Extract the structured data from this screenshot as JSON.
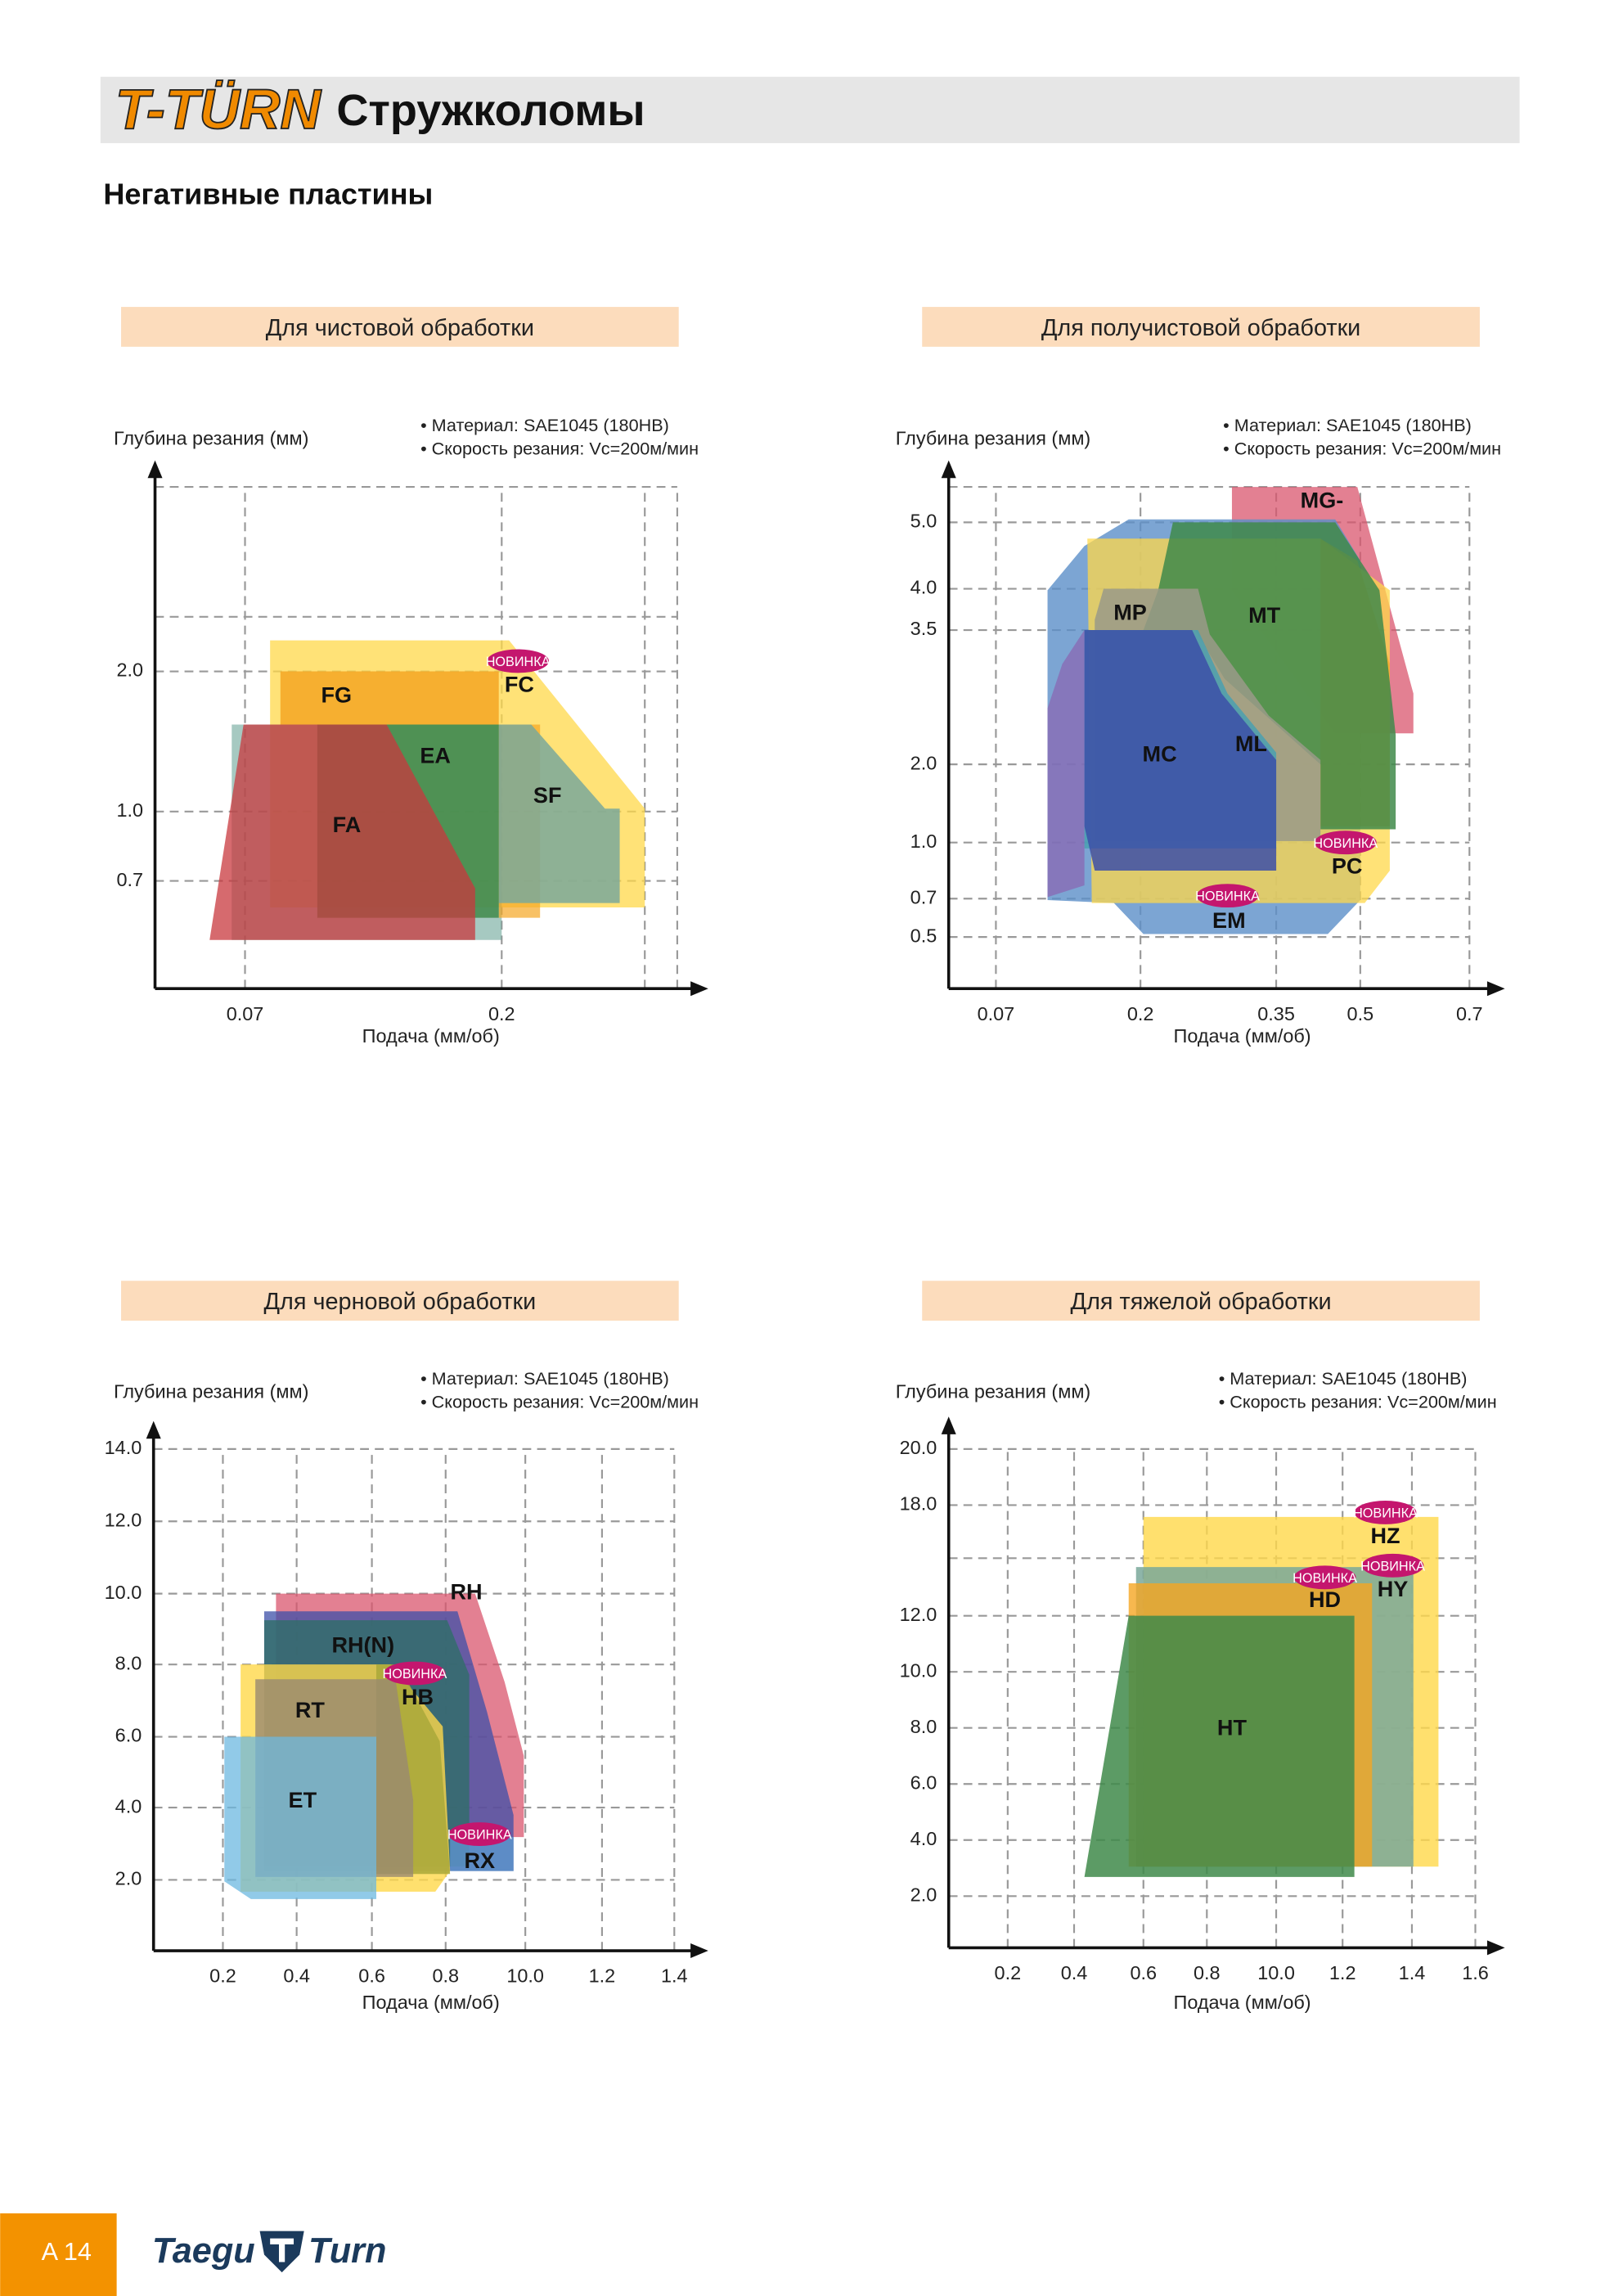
{
  "header": {
    "brand": "T-TÜRN",
    "title": "Стружколомы"
  },
  "subtitle": "Негативные пластины",
  "new_badge": "НОВИНКА",
  "panels": [
    {
      "title": "Для чистовой обработки",
      "y_label": "Глубина резания (мм)",
      "notes": [
        "• Материал: SAE1045 (180HB)",
        "• Скорость резания: Vc=200м/мин"
      ],
      "x_label": "Подача (мм/об)",
      "y_ticks": [
        "2.0",
        "1.0",
        "0.7"
      ],
      "x_ticks": [
        "0.07",
        "0.2"
      ],
      "regions": [
        "FG",
        "FC",
        "EA",
        "SF",
        "FA"
      ]
    },
    {
      "title": "Для получистовой обработки",
      "y_label": "Глубина резания (мм)",
      "notes": [
        "• Материал: SAE1045 (180HB)",
        "• Скорость резания: Vc=200м/мин"
      ],
      "x_label": "Подача (мм/об)",
      "y_ticks": [
        "5.0",
        "4.0",
        "3.5",
        "2.0",
        "1.0",
        "0.7",
        "0.5"
      ],
      "x_ticks": [
        "0.07",
        "0.2",
        "0.35",
        "0.5",
        "0.7"
      ],
      "regions": [
        "MG-",
        "MP",
        "MT",
        "ML",
        "MC",
        "PC",
        "EM"
      ]
    },
    {
      "title": "Для черновой обработки",
      "y_label": "Глубина резания (мм)",
      "notes": [
        "• Материал: SAE1045 (180HB)",
        "• Скорость резания: Vc=200м/мин"
      ],
      "x_label": "Подача (мм/об)",
      "y_ticks": [
        "14.0",
        "12.0",
        "10.0",
        "8.0",
        "6.0",
        "4.0",
        "2.0"
      ],
      "x_ticks": [
        "0.2",
        "0.4",
        "0.6",
        "0.8",
        "10.0",
        "1.2",
        "1.4"
      ],
      "regions": [
        "RH",
        "RH(N)",
        "HB",
        "RT",
        "ET",
        "RX"
      ]
    },
    {
      "title": "Для тяжелой обработки",
      "y_label": "Глубина резания (мм)",
      "notes": [
        "• Материал: SAE1045 (180HB)",
        "• Скорость резания: Vc=200м/мин"
      ],
      "x_label": "Подача (мм/об)",
      "y_ticks": [
        "20.0",
        "18.0",
        "12.0",
        "10.0",
        "8.0",
        "6.0",
        "4.0",
        "2.0"
      ],
      "x_ticks": [
        "0.2",
        "0.4",
        "0.6",
        "0.8",
        "10.0",
        "1.2",
        "1.4",
        "1.6"
      ],
      "regions": [
        "HZ",
        "HD",
        "HY",
        "HT"
      ]
    }
  ],
  "footer": {
    "page": "A 14",
    "brand_left": "Taegu",
    "brand_right": "Turn"
  }
}
